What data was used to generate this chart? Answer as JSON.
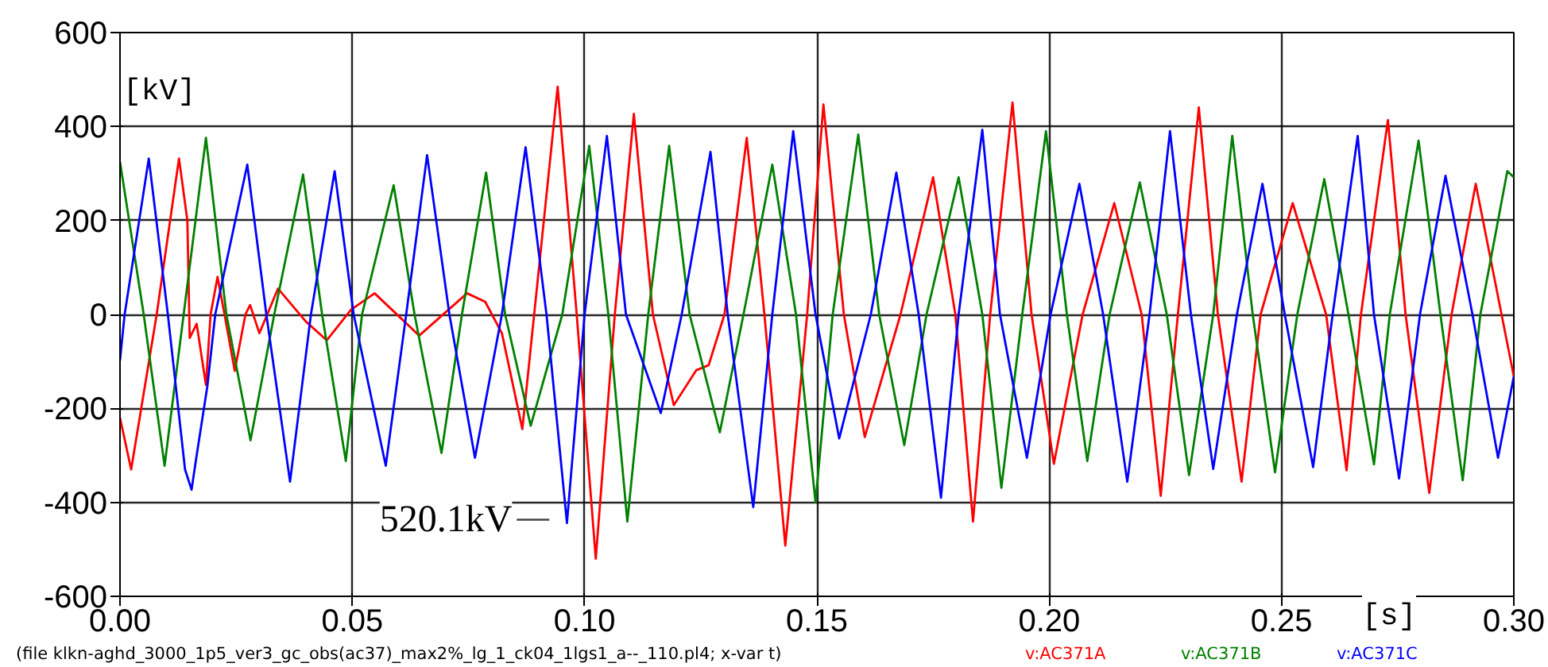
{
  "chart_data": {
    "type": "line",
    "xlabel": "[s]",
    "ylabel": "[kV]",
    "xlim": [
      0,
      0.3
    ],
    "ylim": [
      -600,
      600
    ],
    "xticks": [
      {
        "value": 0,
        "label": "0.00"
      },
      {
        "value": 0.05,
        "label": "0.05"
      },
      {
        "value": 0.1,
        "label": "0.10"
      },
      {
        "value": 0.15,
        "label": "0.15"
      },
      {
        "value": 0.2,
        "label": "0.20"
      },
      {
        "value": 0.25,
        "label": "0.25"
      },
      {
        "value": 0.3,
        "label": "0.30"
      }
    ],
    "yticks": [
      -600,
      -400,
      -200,
      0,
      200,
      400,
      600
    ],
    "grid": true,
    "legend": "bottom",
    "line_style": "solid",
    "marker": "none",
    "annotations": [
      {
        "text": "520.1kV",
        "x": 0.1024,
        "y": -520
      },
      "(file klkn-aghd_3000_1p5_ver3_gc_obs(ac37)_max2%_lg_1_ck04_1lgs1_a--_110.pl4; x-var t)"
    ],
    "series": [
      {
        "name": "v:AC371A",
        "color": "#ff0000",
        "x": [
          0,
          0.0024,
          0.0079,
          0.0127,
          0.0145,
          0.015,
          0.0165,
          0.0185,
          0.0195,
          0.021,
          0.0225,
          0.0247,
          0.027,
          0.028,
          0.03,
          0.034,
          0.04,
          0.0445,
          0.0497,
          0.0548,
          0.0644,
          0.0747,
          0.0786,
          0.0822,
          0.0866,
          0.0942,
          0.0983,
          0.1024,
          0.1065,
          0.1106,
          0.1147,
          0.1192,
          0.124,
          0.1267,
          0.1301,
          0.1349,
          0.1387,
          0.1432,
          0.1479,
          0.1514,
          0.1558,
          0.1603,
          0.168,
          0.175,
          0.1798,
          0.1836,
          0.1873,
          0.1921,
          0.1962,
          0.201,
          0.2072,
          0.214,
          0.2199,
          0.224,
          0.2277,
          0.2322,
          0.2363,
          0.2414,
          0.2455,
          0.2524,
          0.2596,
          0.264,
          0.2671,
          0.2729,
          0.2767,
          0.2818,
          0.2866,
          0.2918,
          0.3
        ],
        "values": [
          -220,
          -330,
          0,
          332,
          200,
          -50,
          -20,
          -150,
          0,
          80,
          0,
          -120,
          0,
          20,
          -40,
          55,
          -15,
          -55,
          10,
          45,
          -45,
          45,
          27,
          -40,
          -244,
          485,
          0,
          -520,
          0,
          427,
          0,
          -193,
          -119,
          -108,
          0,
          376,
          0,
          -492,
          0,
          447,
          0,
          -261,
          0,
          292,
          0,
          -441,
          0,
          451,
          0,
          -318,
          0,
          237,
          0,
          -386,
          0,
          441,
          0,
          -356,
          0,
          237,
          0,
          -332,
          0,
          414,
          0,
          -380,
          0,
          278,
          -132
        ]
      },
      {
        "name": "v:AC371B",
        "color": "#008000",
        "x": [
          0,
          0.0051,
          0.0096,
          0.0137,
          0.0185,
          0.0229,
          0.0281,
          0.0332,
          0.0394,
          0.0435,
          0.0486,
          0.0521,
          0.0589,
          0.0634,
          0.0692,
          0.0736,
          0.0788,
          0.0829,
          0.0884,
          0.0952,
          0.101,
          0.1051,
          0.1092,
          0.1137,
          0.1182,
          0.1226,
          0.1291,
          0.1342,
          0.1404,
          0.1455,
          0.1497,
          0.1534,
          0.1589,
          0.1634,
          0.1688,
          0.1736,
          0.1805,
          0.1856,
          0.1897,
          0.1942,
          0.1993,
          0.2038,
          0.2082,
          0.213,
          0.2195,
          0.2253,
          0.2301,
          0.2353,
          0.2394,
          0.2438,
          0.2486,
          0.2534,
          0.2592,
          0.2644,
          0.2699,
          0.2733,
          0.2795,
          0.2842,
          0.289,
          0.2928,
          0.2986,
          0.3
        ],
        "values": [
          325,
          0,
          -322,
          0,
          376,
          0,
          -268,
          0,
          298,
          0,
          -312,
          0,
          275,
          0,
          -295,
          0,
          302,
          0,
          -237,
          0,
          359,
          0,
          -441,
          0,
          359,
          0,
          -251,
          0,
          319,
          0,
          -400,
          0,
          383,
          0,
          -278,
          0,
          292,
          0,
          -369,
          0,
          390,
          0,
          -312,
          0,
          281,
          0,
          -342,
          0,
          380,
          0,
          -336,
          0,
          288,
          0,
          -319,
          0,
          370,
          0,
          -353,
          0,
          305,
          292
        ]
      },
      {
        "name": "v:AC371C",
        "color": "#0000ff",
        "x": [
          0,
          0.001,
          0.0062,
          0.0103,
          0.014,
          0.0154,
          0.0165,
          0.0188,
          0.0205,
          0.0216,
          0.0274,
          0.0315,
          0.0366,
          0.0411,
          0.0462,
          0.0503,
          0.0572,
          0.0616,
          0.0661,
          0.0709,
          0.0764,
          0.0822,
          0.0873,
          0.0918,
          0.0962,
          0.1,
          0.1048,
          0.1089,
          0.1164,
          0.1209,
          0.1271,
          0.1308,
          0.1363,
          0.1404,
          0.1449,
          0.1497,
          0.1548,
          0.1616,
          0.1671,
          0.1719,
          0.1767,
          0.1805,
          0.1856,
          0.1894,
          0.1952,
          0.2003,
          0.2065,
          0.2116,
          0.2168,
          0.2216,
          0.226,
          0.2305,
          0.2353,
          0.2404,
          0.2459,
          0.2507,
          0.2568,
          0.261,
          0.2664,
          0.2699,
          0.2753,
          0.2798,
          0.2853,
          0.2911,
          0.2966,
          0.3
        ],
        "values": [
          -98,
          0,
          332,
          0,
          -330,
          -373,
          -300,
          -153,
          0,
          51,
          319,
          0,
          -356,
          0,
          305,
          0,
          -322,
          0,
          339,
          0,
          -305,
          0,
          356,
          0,
          -444,
          0,
          380,
          0,
          -210,
          0,
          346,
          0,
          -410,
          0,
          390,
          0,
          -264,
          0,
          302,
          0,
          -390,
          0,
          393,
          0,
          -305,
          0,
          278,
          0,
          -356,
          0,
          390,
          0,
          -329,
          0,
          278,
          0,
          -325,
          0,
          380,
          0,
          -349,
          0,
          295,
          0,
          -305,
          -132
        ]
      }
    ]
  }
}
